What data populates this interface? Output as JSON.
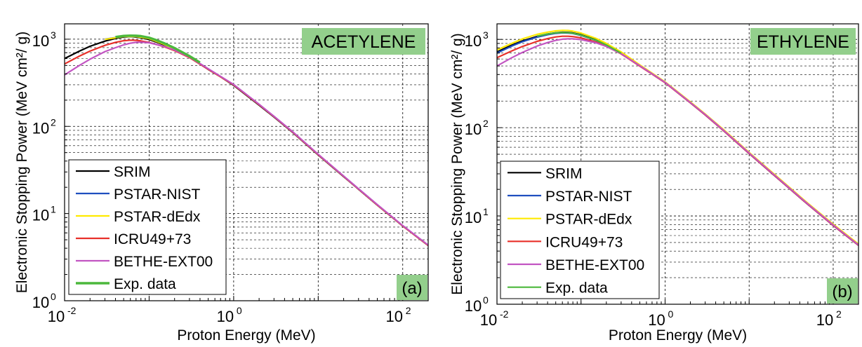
{
  "chart_data": [
    {
      "type": "line",
      "xscale": "log",
      "yscale": "log",
      "xlim": [
        0.01,
        200
      ],
      "ylim": [
        1,
        1500
      ],
      "xlabel": "Proton Energy (MeV)",
      "ylabel": "Electronic Stopping Power (MeV cm²/ g)",
      "x_ticks": [
        {
          "base": "10",
          "exp": "-2"
        },
        {
          "base": "10",
          "exp": "0"
        },
        {
          "base": "10",
          "exp": "2"
        }
      ],
      "y_ticks": [
        {
          "base": "10",
          "exp": "0"
        },
        {
          "base": "10",
          "exp": "1"
        },
        {
          "base": "10",
          "exp": "2"
        },
        {
          "base": "10",
          "exp": "3"
        }
      ],
      "grid": true,
      "annotation": "ACETYLENE",
      "annotation_color": "#93cf8c",
      "panel_label": "(a)",
      "legend_placement": "bottom-left",
      "series": [
        {
          "name": "SRIM",
          "color": "#000000",
          "x": [
            0.01,
            0.015,
            0.02,
            0.03,
            0.04,
            0.05,
            0.06,
            0.07,
            0.08,
            0.1,
            0.15,
            0.2,
            0.3,
            0.5,
            0.7,
            1,
            2,
            3,
            5,
            10,
            20,
            30,
            50,
            100,
            200
          ],
          "y": [
            600,
            730,
            830,
            950,
            1020,
            1060,
            1070,
            1060,
            1040,
            990,
            860,
            760,
            620,
            450,
            370,
            295,
            175,
            128,
            85,
            47,
            26.5,
            19,
            12.5,
            7.2,
            4.3
          ]
        },
        {
          "name": "PSTAR-NIST",
          "color": "#1f4fbf",
          "x": [
            0.03,
            0.05,
            0.07,
            0.1,
            0.15,
            0.2,
            0.3,
            0.5,
            0.7,
            1,
            2,
            3,
            5,
            10,
            20,
            30,
            50,
            100,
            200
          ],
          "y": [
            1000,
            1080,
            1080,
            1020,
            880,
            770,
            630,
            455,
            372,
            300,
            178,
            130,
            86,
            47.5,
            26.8,
            19.2,
            12.6,
            7.25,
            4.32
          ]
        },
        {
          "name": "PSTAR-dEdx",
          "color": "#ffea00",
          "x": [
            0.03,
            0.05,
            0.07,
            0.1,
            0.15,
            0.2,
            0.3,
            0.5,
            0.7,
            1,
            2,
            3,
            5,
            10,
            20,
            30,
            50,
            100,
            200
          ],
          "y": [
            995,
            1075,
            1075,
            1015,
            875,
            768,
            628,
            453,
            371,
            299,
            177.5,
            129.5,
            85.8,
            47.4,
            26.7,
            19.1,
            12.55,
            7.22,
            4.31
          ]
        },
        {
          "name": "ICRU49+73",
          "color": "#e8302a",
          "x": [
            0.01,
            0.015,
            0.02,
            0.03,
            0.04,
            0.05,
            0.06,
            0.07,
            0.08,
            0.1,
            0.15,
            0.2,
            0.3,
            0.5,
            0.7,
            1,
            2,
            3,
            5,
            10,
            20,
            30,
            50,
            100,
            200
          ],
          "y": [
            520,
            640,
            730,
            850,
            920,
            960,
            975,
            970,
            955,
            920,
            820,
            740,
            615,
            452,
            371,
            299,
            177.5,
            129.5,
            85.8,
            47.4,
            26.7,
            19.1,
            12.55,
            7.22,
            4.31
          ]
        },
        {
          "name": "BETHE-EXT00",
          "color": "#c255c2",
          "x": [
            0.01,
            0.015,
            0.02,
            0.03,
            0.04,
            0.05,
            0.06,
            0.07,
            0.08,
            0.1,
            0.15,
            0.2,
            0.3,
            0.5,
            0.7,
            1,
            2,
            3,
            5,
            10,
            20,
            30,
            50,
            100,
            200
          ],
          "y": [
            390,
            500,
            590,
            720,
            800,
            860,
            900,
            920,
            925,
            910,
            830,
            750,
            625,
            458,
            375,
            302,
            179,
            130.5,
            86.5,
            47.8,
            26.9,
            19.25,
            12.65,
            7.28,
            4.35
          ]
        },
        {
          "name": "Exp. data",
          "color": "#4cb83c",
          "x": [
            0.04,
            0.05,
            0.06,
            0.07,
            0.08,
            0.1,
            0.12,
            0.15,
            0.2,
            0.3,
            0.4
          ],
          "y": [
            1060,
            1090,
            1100,
            1095,
            1085,
            1040,
            980,
            900,
            790,
            640,
            540
          ]
        }
      ]
    },
    {
      "type": "line",
      "xscale": "log",
      "yscale": "log",
      "xlim": [
        0.01,
        200
      ],
      "ylim": [
        1,
        1500
      ],
      "xlabel": "Proton Energy (MeV)",
      "ylabel": "Electronic Stopping Power (MeV cm²/ g)",
      "x_ticks": [
        {
          "base": "10",
          "exp": "-2"
        },
        {
          "base": "10",
          "exp": "0"
        },
        {
          "base": "10",
          "exp": "2"
        }
      ],
      "y_ticks": [
        {
          "base": "10",
          "exp": "0"
        },
        {
          "base": "10",
          "exp": "1"
        },
        {
          "base": "10",
          "exp": "2"
        },
        {
          "base": "10",
          "exp": "3"
        }
      ],
      "grid": true,
      "annotation": "ETHYLENE",
      "annotation_color": "#93cf8c",
      "panel_label": "(b)",
      "legend_placement": "bottom-left",
      "series": [
        {
          "name": "SRIM",
          "color": "#000000",
          "x": [
            0.01,
            0.015,
            0.02,
            0.03,
            0.04,
            0.05,
            0.06,
            0.07,
            0.08,
            0.1,
            0.15,
            0.2,
            0.3,
            0.5,
            0.7,
            1,
            2,
            3,
            5,
            10,
            20,
            30,
            50,
            100,
            200
          ],
          "y": [
            720,
            860,
            960,
            1080,
            1150,
            1190,
            1205,
            1200,
            1185,
            1130,
            990,
            870,
            700,
            505,
            408,
            325,
            192,
            140,
            92,
            51,
            28.7,
            20.6,
            13.5,
            7.8,
            4.65
          ]
        },
        {
          "name": "PSTAR-NIST",
          "color": "#1f4fbf",
          "x": [
            0.01,
            0.015,
            0.02,
            0.03,
            0.04,
            0.05,
            0.06,
            0.07,
            0.08,
            0.1,
            0.15,
            0.2,
            0.3,
            0.5,
            0.7,
            1,
            2,
            3,
            5,
            10,
            20,
            30,
            50,
            100,
            200
          ],
          "y": [
            700,
            840,
            940,
            1060,
            1130,
            1170,
            1185,
            1180,
            1165,
            1110,
            975,
            860,
            695,
            502,
            406,
            324,
            191,
            139.5,
            91.8,
            51,
            28.7,
            20.6,
            13.5,
            7.8,
            4.65
          ]
        },
        {
          "name": "PSTAR-dEdx",
          "color": "#ffea00",
          "x": [
            0.01,
            0.015,
            0.02,
            0.03,
            0.04,
            0.05,
            0.06,
            0.07,
            0.08,
            0.1,
            0.15,
            0.2,
            0.3,
            0.5,
            0.7,
            1,
            2,
            3,
            5,
            10,
            20,
            30,
            50,
            100,
            200
          ],
          "y": [
            760,
            900,
            1010,
            1140,
            1210,
            1250,
            1265,
            1260,
            1240,
            1180,
            1030,
            900,
            720,
            515,
            415,
            330,
            196,
            143,
            94.5,
            52.5,
            29.6,
            21.2,
            13.9,
            8.05,
            4.8
          ]
        },
        {
          "name": "ICRU49+73",
          "color": "#e8302a",
          "x": [
            0.01,
            0.015,
            0.02,
            0.03,
            0.04,
            0.05,
            0.06,
            0.07,
            0.08,
            0.1,
            0.15,
            0.2,
            0.3,
            0.5,
            0.7,
            1,
            2,
            3,
            5,
            10,
            20,
            30,
            50,
            100,
            200
          ],
          "y": [
            620,
            740,
            830,
            950,
            1020,
            1065,
            1085,
            1085,
            1075,
            1040,
            935,
            835,
            685,
            498,
            404,
            323,
            191,
            139.5,
            91.8,
            51,
            28.7,
            20.6,
            13.5,
            7.8,
            4.65
          ]
        },
        {
          "name": "BETHE-EXT00",
          "color": "#c255c2",
          "x": [
            0.01,
            0.015,
            0.02,
            0.03,
            0.04,
            0.05,
            0.06,
            0.07,
            0.08,
            0.1,
            0.15,
            0.2,
            0.3,
            0.5,
            0.7,
            1,
            2,
            3,
            5,
            10,
            20,
            30,
            50,
            100,
            200
          ],
          "y": [
            500,
            620,
            710,
            840,
            920,
            975,
            1005,
            1015,
            1015,
            995,
            915,
            830,
            690,
            504,
            408,
            326,
            193,
            141,
            92.8,
            51.6,
            29,
            20.8,
            13.65,
            7.9,
            4.7
          ]
        },
        {
          "name": "Exp. data",
          "color": "#4cb83c",
          "x": [
            0.03,
            0.04,
            0.05,
            0.06,
            0.07,
            0.08,
            0.1,
            0.15,
            0.2,
            0.3
          ],
          "y": [
            1090,
            1150,
            1185,
            1195,
            1190,
            1175,
            1120,
            980,
            865,
            698
          ]
        }
      ]
    }
  ]
}
